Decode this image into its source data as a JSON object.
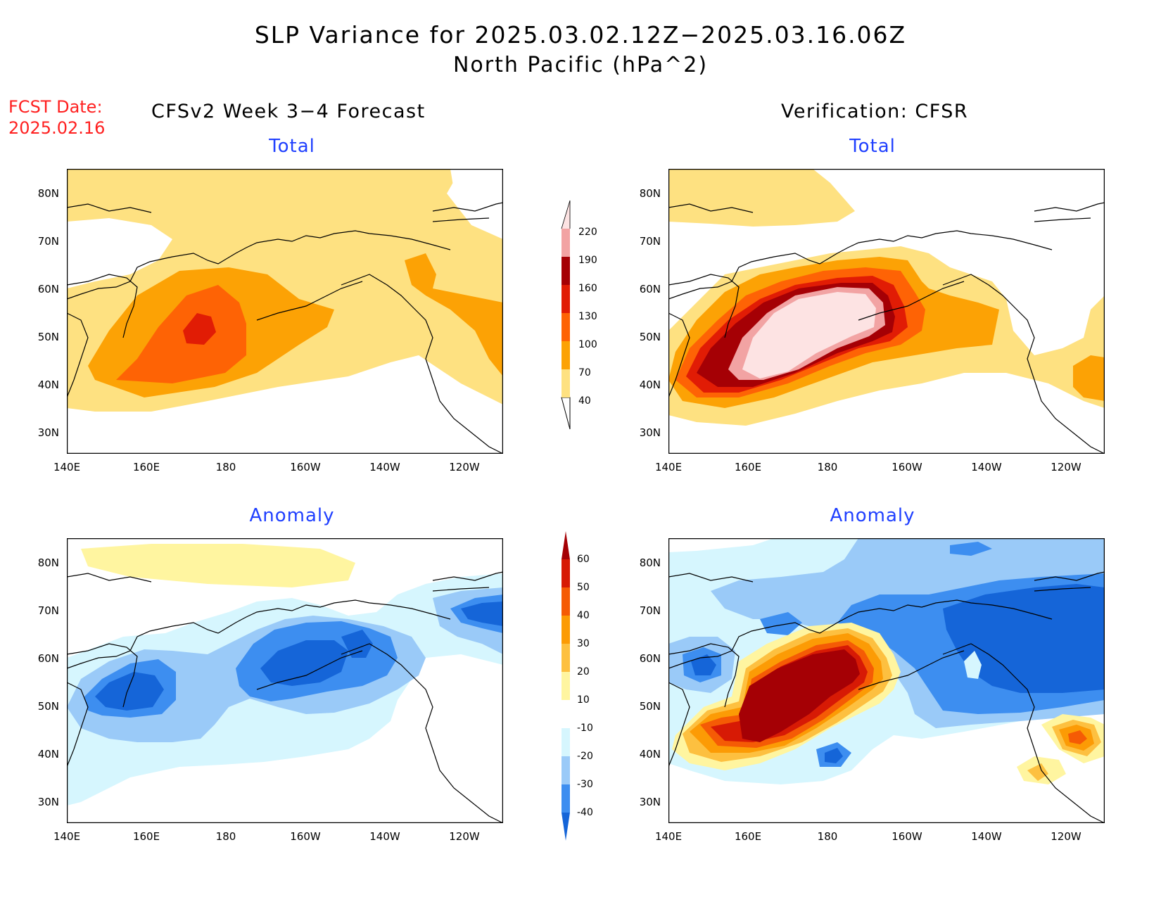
{
  "title": "SLP Variance for 2025.03.02.12Z−2025.03.16.06Z",
  "subtitle": "North Pacific (hPa^2)",
  "fcst_date_label": "FCST Date:",
  "fcst_date_value": "2025.02.16",
  "left_header": "CFSv2 Week 3−4 Forecast",
  "right_header": "Verification: CFSR",
  "panel_titles": {
    "top_left": "Total",
    "top_right": "Total",
    "bottom_left": "Anomaly",
    "bottom_right": "Anomaly"
  },
  "lat_ticks": [
    "80N",
    "70N",
    "60N",
    "50N",
    "40N",
    "30N"
  ],
  "lon_ticks": [
    "140E",
    "160E",
    "180",
    "160W",
    "140W",
    "120W"
  ],
  "total_colorbar": {
    "levels": [
      "40",
      "70",
      "100",
      "130",
      "160",
      "190",
      "220"
    ],
    "colors": [
      "#fee181",
      "#fca205",
      "#fe6305",
      "#e11c05",
      "#a50005",
      "#f2a3a3",
      "#fde3e3"
    ]
  },
  "anomaly_colorbar": {
    "levels": [
      "-40",
      "-30",
      "-20",
      "-10",
      "10",
      "20",
      "30",
      "40",
      "50",
      "60"
    ],
    "colors": [
      "#1565d8",
      "#3d8ef0",
      "#9acaf8",
      "#d6f6fe",
      "#ffffff",
      "#fff5a0",
      "#fdc040",
      "#fc9b05",
      "#f55b05",
      "#d71a05",
      "#a50005"
    ]
  }
}
